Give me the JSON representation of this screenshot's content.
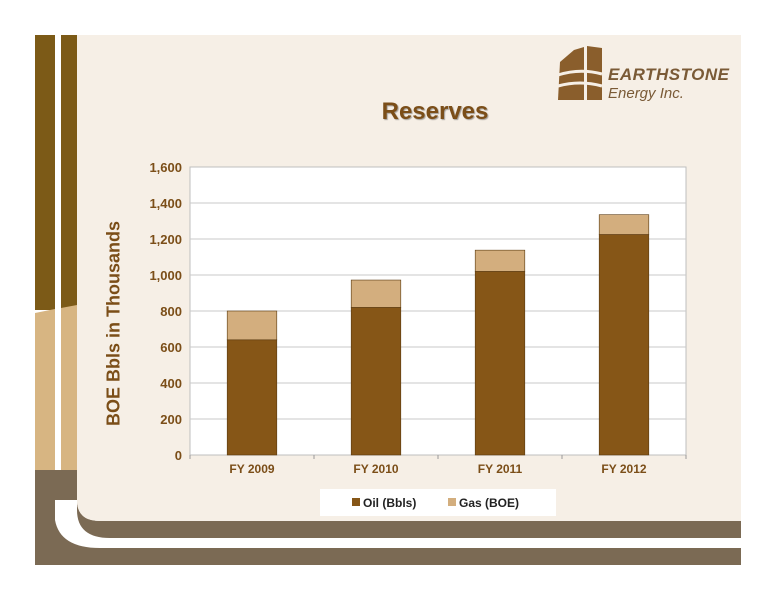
{
  "slide": {
    "title": "Reserves",
    "logo": {
      "name": "EARTHSTONE",
      "subtitle": "Energy Inc."
    }
  },
  "colors": {
    "oil": "#865617",
    "gas": "#d3ae7e",
    "frame_brown": "#7c5a17",
    "frame_tan": "#d7b582",
    "bottom_band": "#7b6a54",
    "panel_bg": "#f6efe6",
    "title_color": "#7b4e18"
  },
  "chart_data": {
    "type": "bar",
    "stacked": true,
    "title": "Reserves",
    "ylabel": "BOE Bbls in Thousands",
    "xlabel": "",
    "categories": [
      "FY 2009",
      "FY 2010",
      "FY 2011",
      "FY 2012"
    ],
    "series": [
      {
        "name": "Oil (Bbls)",
        "values": [
          640,
          820,
          1020,
          1225
        ]
      },
      {
        "name": "Gas (BOE)",
        "values": [
          160,
          152,
          118,
          110
        ]
      }
    ],
    "ylim": [
      0,
      1600
    ],
    "yticks": [
      "0",
      "200",
      "400",
      "600",
      "800",
      "1,000",
      "1,200",
      "1,400",
      "1,600"
    ],
    "grid": true,
    "legend_position": "bottom"
  }
}
